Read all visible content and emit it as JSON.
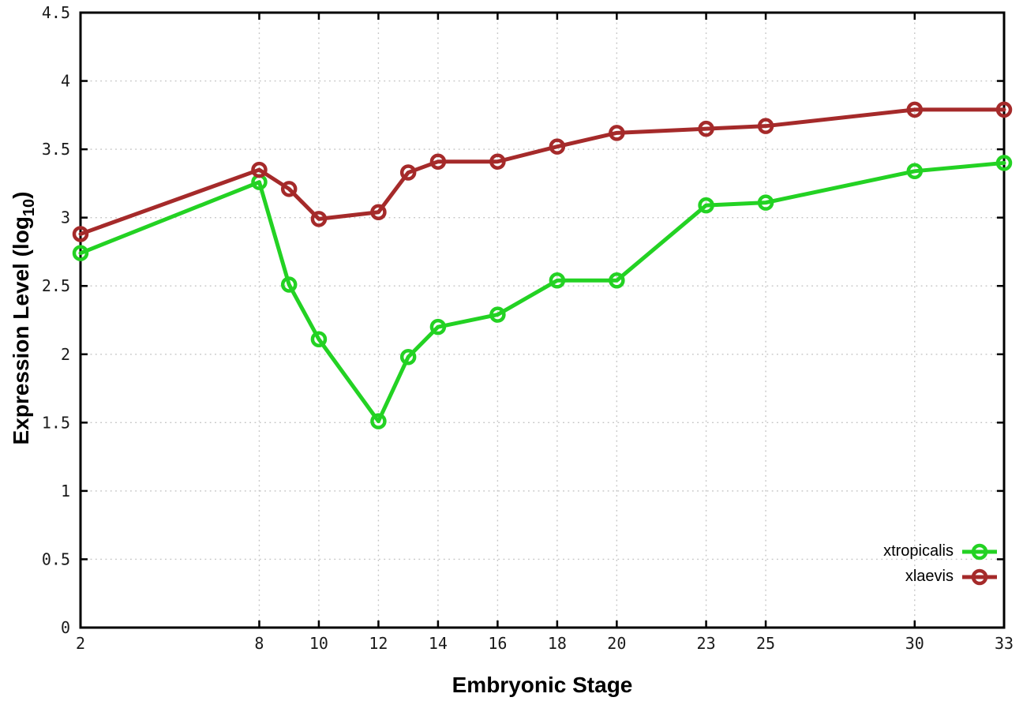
{
  "chart": {
    "xlabel": "Embryonic Stage",
    "ylabel_prefix": "Expression Level (log",
    "ylabel_sub": "10",
    "ylabel_suffix": ")"
  },
  "chart_data": {
    "type": "line",
    "x": [
      2,
      8,
      9,
      10,
      12,
      13,
      14,
      16,
      18,
      20,
      23,
      25,
      30,
      33
    ],
    "series": [
      {
        "name": "xtropicalis",
        "color": "#23d223",
        "values": [
          2.74,
          3.26,
          2.51,
          2.11,
          1.51,
          1.98,
          2.2,
          2.29,
          2.54,
          2.54,
          3.09,
          3.11,
          3.34,
          3.4
        ]
      },
      {
        "name": "xlaevis",
        "color": "#a52a2a",
        "values": [
          2.88,
          3.35,
          3.21,
          2.99,
          3.04,
          3.33,
          3.41,
          3.41,
          3.52,
          3.62,
          3.65,
          3.67,
          3.79,
          3.79
        ]
      }
    ],
    "xlabel": "Embryonic Stage",
    "ylabel": "Expression Level (log10)",
    "xlim": [
      2,
      33
    ],
    "ylim": [
      0,
      4.5
    ],
    "xticks": [
      2,
      8,
      10,
      12,
      14,
      16,
      18,
      20,
      23,
      25,
      30,
      33
    ],
    "yticks": [
      0,
      0.5,
      1,
      1.5,
      2,
      2.5,
      3,
      3.5,
      4,
      4.5
    ],
    "grid": true,
    "grid_style": "dotted",
    "legend_position": "bottom-right",
    "marker": "open-circle",
    "line_width": 5,
    "background": "#ffffff",
    "border_color": "#000000",
    "grid_color": "#c4c4c4"
  }
}
